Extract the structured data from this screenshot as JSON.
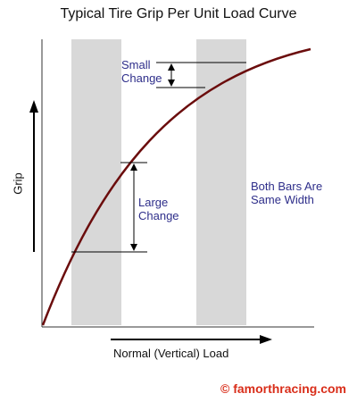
{
  "title": "Typical Tire Grip Per Unit Load Curve",
  "y_axis_label": "Grip",
  "x_axis_label": "Normal (Vertical) Load",
  "small_change_label": "Small Change",
  "large_change_label": "Large Change",
  "bars_note": "Both Bars Are Same Width",
  "copyright": "© famorthracing.com",
  "colors": {
    "curve": "#6b0d0d",
    "bar_fill": "#d8d8d8",
    "annotation_text": "#2e2e8a",
    "copyright": "#d92e1a"
  }
}
